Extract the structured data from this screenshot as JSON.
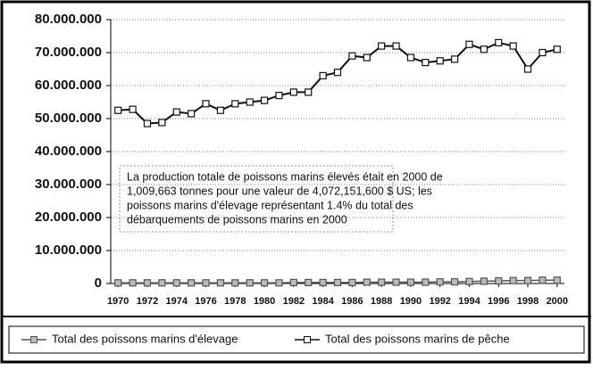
{
  "chart_data": {
    "type": "line",
    "x": [
      1970,
      1971,
      1972,
      1973,
      1974,
      1975,
      1976,
      1977,
      1978,
      1979,
      1980,
      1981,
      1982,
      1983,
      1984,
      1985,
      1986,
      1987,
      1988,
      1989,
      1990,
      1991,
      1992,
      1993,
      1994,
      1995,
      1996,
      1997,
      1998,
      1999,
      2000
    ],
    "xlim": [
      1969.5,
      2000.5
    ],
    "xticks": [
      1970,
      1972,
      1974,
      1976,
      1978,
      1980,
      1982,
      1984,
      1986,
      1988,
      1990,
      1992,
      1994,
      1996,
      1998,
      2000
    ],
    "ylim": [
      0,
      80000000
    ],
    "yticks": [
      0,
      {
        "value": 10000000,
        "label": "10.000.000"
      },
      {
        "value": 20000000,
        "label": "20.000.000"
      },
      {
        "value": 30000000,
        "label": "30.000.000"
      },
      {
        "value": 40000000,
        "label": "40.000.000"
      },
      {
        "value": 50000000,
        "label": "50.000.000"
      },
      {
        "value": 60000000,
        "label": "60.000.000"
      },
      {
        "value": 70000000,
        "label": "70.000.000"
      },
      {
        "value": 80000000,
        "label": "80.000.000"
      }
    ],
    "grid": true,
    "series": [
      {
        "name": "Total des poissons marins d'élevage",
        "color": "#555555",
        "marker_fill": "#bbbbbb",
        "values": [
          200000,
          200000,
          200000,
          200000,
          200000,
          200000,
          200000,
          200000,
          200000,
          200000,
          200000,
          200000,
          300000,
          300000,
          300000,
          300000,
          300000,
          400000,
          400000,
          400000,
          400000,
          400000,
          500000,
          500000,
          600000,
          700000,
          800000,
          900000,
          900000,
          1000000,
          1000000
        ]
      },
      {
        "name": "Total des poissons marins de pêche",
        "color": "#111111",
        "marker_fill": "#ffffff",
        "values": [
          52500000,
          52800000,
          48500000,
          48800000,
          52000000,
          51500000,
          54500000,
          52500000,
          54500000,
          55000000,
          55500000,
          57000000,
          58000000,
          58000000,
          63000000,
          64000000,
          69000000,
          68500000,
          72000000,
          72000000,
          68500000,
          67000000,
          67500000,
          68000000,
          72500000,
          71000000,
          73000000,
          72000000,
          65000000,
          70000000,
          71000000
        ]
      }
    ],
    "annotation": [
      "La production totale de poissons marins élevés était en 2000 de",
      "1,009,663 tonnes pour une valeur de 4,072,151,600 $ US; les",
      "poissons marins d'élevage représentant 1.4% du total des",
      "débarquements de poissons marins en 2000"
    ]
  }
}
